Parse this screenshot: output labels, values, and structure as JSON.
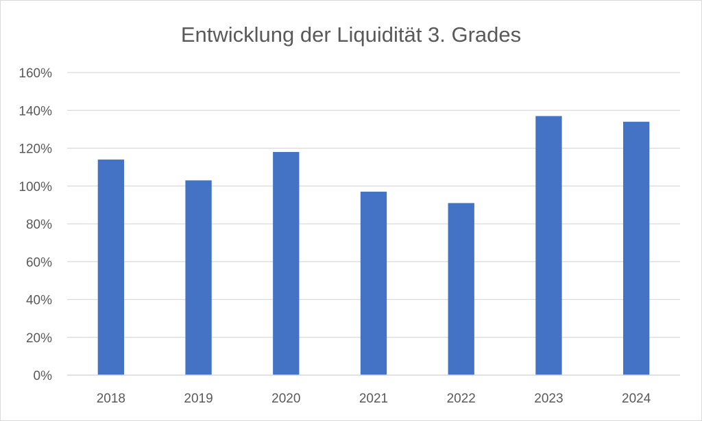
{
  "chart_data": {
    "type": "bar",
    "title": "Entwicklung der Liquidität 3. Grades",
    "categories": [
      "2018",
      "2019",
      "2020",
      "2021",
      "2022",
      "2023",
      "2024"
    ],
    "series": [
      {
        "values": [
          114,
          103,
          118,
          97,
          91,
          137,
          134
        ],
        "color": "#4472c4"
      }
    ],
    "value_unit": "%",
    "ylim": [
      0,
      160
    ],
    "yticks": [
      0,
      20,
      40,
      60,
      80,
      100,
      120,
      140,
      160
    ],
    "ytick_labels": [
      "0%",
      "20%",
      "40%",
      "60%",
      "80%",
      "100%",
      "120%",
      "140%",
      "160%"
    ],
    "grid": true,
    "legend": "none",
    "xlabel": "",
    "ylabel": ""
  }
}
